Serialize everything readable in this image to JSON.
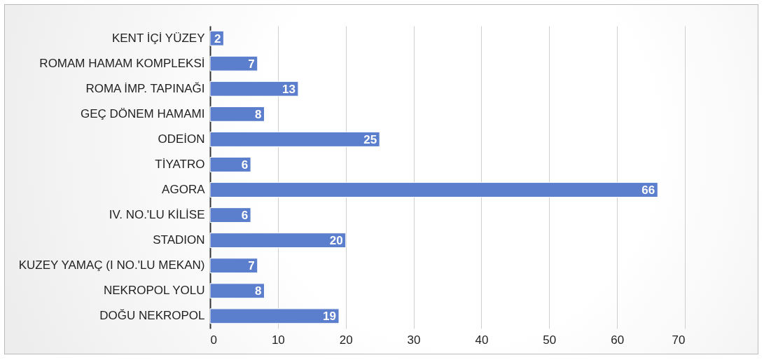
{
  "chart_data": {
    "type": "bar",
    "orientation": "horizontal",
    "categories": [
      "KENT İÇİ YÜZEY",
      "ROMAM HAMAM KOMPLEKSİ",
      "ROMA İMP. TAPINAĞI",
      "GEÇ DÖNEM HAMAMI",
      "ODEİON",
      "TİYATRO",
      "AGORA",
      "IV. NO.'LU KİLİSE",
      "STADION",
      "KUZEY YAMAÇ (I NO.'LU MEKAN)",
      "NEKROPOL YOLU",
      "DOĞU NEKROPOL"
    ],
    "values": [
      2,
      7,
      13,
      8,
      25,
      6,
      66,
      6,
      20,
      7,
      8,
      19
    ],
    "color": "#5b7fcc",
    "xlim": [
      0,
      70
    ],
    "xticks": [
      0,
      10,
      20,
      30,
      40,
      50,
      60,
      70
    ],
    "grid": "x",
    "data_labels": true
  }
}
